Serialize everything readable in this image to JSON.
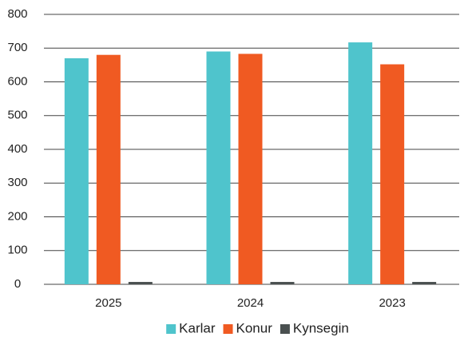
{
  "chart_data": {
    "type": "bar",
    "categories": [
      "2025",
      "2024",
      "2023"
    ],
    "series": [
      {
        "name": "Karlar",
        "color": "#4fc4cc",
        "values": [
          670,
          690,
          717
        ]
      },
      {
        "name": "Konur",
        "color": "#f05a22",
        "values": [
          680,
          683,
          652
        ]
      },
      {
        "name": "Kynsegin",
        "color": "#4a5050",
        "values": [
          7,
          7,
          7
        ]
      }
    ],
    "ylim": [
      0,
      800
    ],
    "yticks": [
      0,
      100,
      200,
      300,
      400,
      500,
      600,
      700,
      800
    ],
    "grid": true,
    "legend": "bottom"
  }
}
